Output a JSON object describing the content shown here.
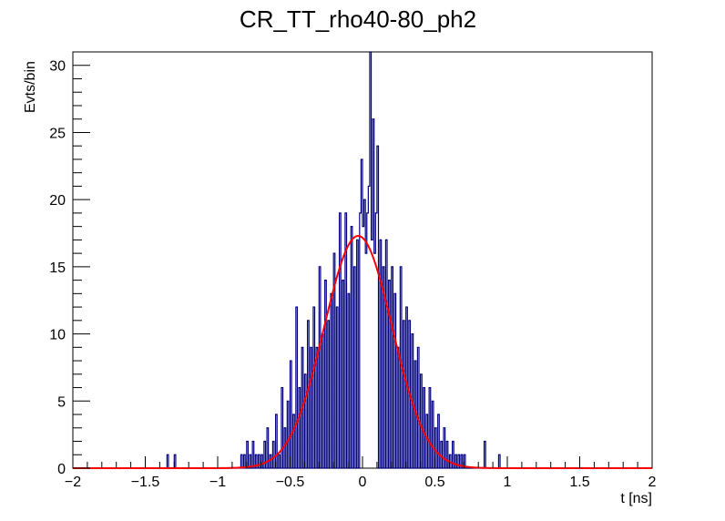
{
  "chart_data": {
    "type": "histogram",
    "title": "CR_TT_rho40-80_ph2",
    "xlabel": "t [ns]",
    "ylabel": "Evts/bin",
    "xlim": [
      -2,
      2
    ],
    "ylim": [
      0,
      31
    ],
    "grid": false,
    "legend": "none",
    "x_ticks": [
      -2,
      -1.5,
      -1,
      -0.5,
      0,
      0.5,
      1,
      1.5,
      2
    ],
    "x_tick_labels": [
      "−2",
      "−1.5",
      "−1",
      "−0.5",
      "0",
      "0.5",
      "1",
      "1.5",
      "2"
    ],
    "y_ticks": [
      0,
      5,
      10,
      15,
      20,
      25,
      30
    ],
    "y_tick_labels": [
      "0",
      "5",
      "10",
      "15",
      "20",
      "25",
      "30"
    ],
    "bin_width": 0.01,
    "series": [
      {
        "kind": "histogram",
        "color": "#000080",
        "bins": [
          [
            -1.35,
            1
          ],
          [
            -1.3,
            1
          ],
          [
            -0.84,
            1
          ],
          [
            -0.82,
            1
          ],
          [
            -0.8,
            2
          ],
          [
            -0.78,
            1
          ],
          [
            -0.76,
            2
          ],
          [
            -0.74,
            1
          ],
          [
            -0.72,
            1
          ],
          [
            -0.7,
            1
          ],
          [
            -0.68,
            2
          ],
          [
            -0.66,
            3
          ],
          [
            -0.64,
            1
          ],
          [
            -0.62,
            2
          ],
          [
            -0.6,
            4
          ],
          [
            -0.58,
            1
          ],
          [
            -0.56,
            6
          ],
          [
            -0.54,
            3
          ],
          [
            -0.52,
            5
          ],
          [
            -0.5,
            8
          ],
          [
            -0.48,
            4
          ],
          [
            -0.46,
            12
          ],
          [
            -0.44,
            6
          ],
          [
            -0.42,
            9
          ],
          [
            -0.4,
            7
          ],
          [
            -0.38,
            11
          ],
          [
            -0.36,
            9
          ],
          [
            -0.34,
            12
          ],
          [
            -0.32,
            9
          ],
          [
            -0.3,
            15
          ],
          [
            -0.28,
            10
          ],
          [
            -0.26,
            14
          ],
          [
            -0.24,
            11
          ],
          [
            -0.22,
            13
          ],
          [
            -0.2,
            16
          ],
          [
            -0.18,
            12
          ],
          [
            -0.16,
            19
          ],
          [
            -0.14,
            14
          ],
          [
            -0.12,
            19
          ],
          [
            -0.1,
            13
          ],
          [
            -0.08,
            18
          ],
          [
            -0.06,
            15
          ],
          [
            -0.04,
            17
          ],
          [
            -0.02,
            19
          ],
          [
            -0.01,
            23
          ],
          [
            0.0,
            18
          ],
          [
            0.01,
            20
          ],
          [
            0.02,
            16
          ],
          [
            0.03,
            19
          ],
          [
            0.04,
            21
          ],
          [
            0.05,
            31
          ],
          [
            0.06,
            17
          ],
          [
            0.07,
            26
          ],
          [
            0.08,
            16
          ],
          [
            0.09,
            19
          ],
          [
            0.1,
            24
          ],
          [
            0.12,
            17
          ],
          [
            0.14,
            15
          ],
          [
            0.16,
            17
          ],
          [
            0.18,
            14
          ],
          [
            0.2,
            15
          ],
          [
            0.22,
            13
          ],
          [
            0.24,
            9
          ],
          [
            0.26,
            15
          ],
          [
            0.28,
            11
          ],
          [
            0.3,
            12
          ],
          [
            0.32,
            11
          ],
          [
            0.34,
            10
          ],
          [
            0.36,
            8
          ],
          [
            0.38,
            9
          ],
          [
            0.4,
            7
          ],
          [
            0.42,
            6
          ],
          [
            0.44,
            4
          ],
          [
            0.46,
            6
          ],
          [
            0.48,
            5
          ],
          [
            0.5,
            3
          ],
          [
            0.52,
            4
          ],
          [
            0.54,
            2
          ],
          [
            0.56,
            3
          ],
          [
            0.58,
            2
          ],
          [
            0.6,
            1
          ],
          [
            0.62,
            2
          ],
          [
            0.64,
            1
          ],
          [
            0.66,
            1
          ],
          [
            0.68,
            1
          ],
          [
            0.7,
            1
          ],
          [
            0.84,
            2
          ],
          [
            0.94,
            1
          ]
        ]
      },
      {
        "kind": "gaussian-fit",
        "color": "#ff0000",
        "amplitude": 17.3,
        "mean": -0.03,
        "sigma": 0.235
      }
    ]
  }
}
